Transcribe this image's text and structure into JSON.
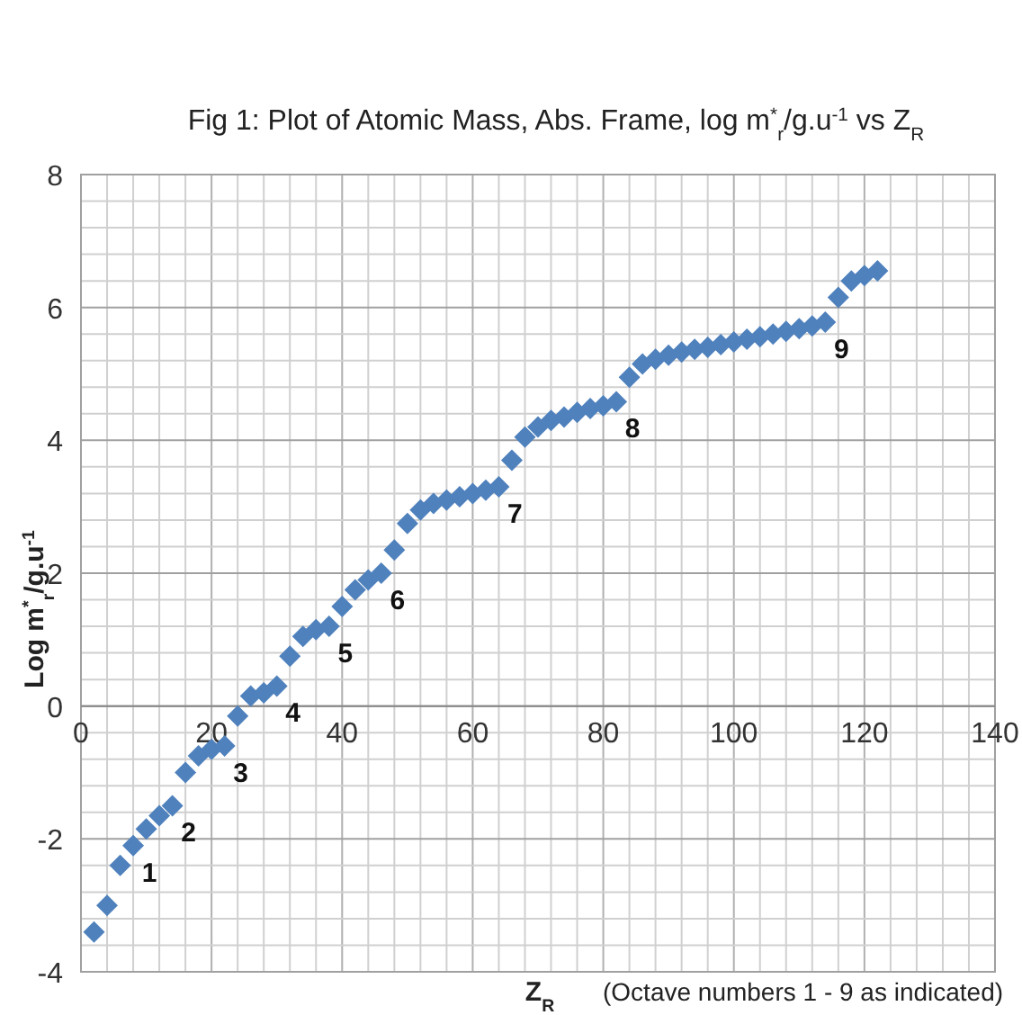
{
  "chart_data": {
    "type": "scatter",
    "title": "Fig 1: Plot of Atomic Mass, Abs. Frame, log m$^{*}$$_{r}$/g.u$^{-1}$  vs Z$_{R}$",
    "xlabel": "Z$_{R}$",
    "ylabel": "Log m$^{*}$$_{r}$/g.u$^{-1}$",
    "x": [
      2,
      4,
      6,
      8,
      10,
      12,
      14,
      16,
      18,
      20,
      22,
      24,
      26,
      28,
      30,
      32,
      34,
      36,
      38,
      40,
      42,
      44,
      46,
      48,
      50,
      52,
      54,
      56,
      58,
      60,
      62,
      64,
      66,
      68,
      70,
      72,
      74,
      76,
      78,
      80,
      82,
      84,
      86,
      88,
      90,
      92,
      94,
      96,
      98,
      100,
      102,
      104,
      106,
      108,
      110,
      112,
      114,
      116,
      118,
      120,
      122
    ],
    "series": [
      {
        "color": "#4f81bd",
        "values": [
          -3.4,
          -3.0,
          -2.4,
          -2.1,
          -1.85,
          -1.65,
          -1.5,
          -1.0,
          -0.75,
          -0.65,
          -0.6,
          -0.15,
          0.15,
          0.2,
          0.3,
          0.75,
          1.05,
          1.15,
          1.2,
          1.5,
          1.75,
          1.9,
          2.0,
          2.35,
          2.75,
          2.95,
          3.05,
          3.1,
          3.15,
          3.2,
          3.25,
          3.3,
          3.7,
          4.05,
          4.2,
          4.3,
          4.35,
          4.42,
          4.48,
          4.52,
          4.58,
          4.95,
          5.15,
          5.22,
          5.28,
          5.33,
          5.37,
          5.4,
          5.44,
          5.48,
          5.52,
          5.56,
          5.6,
          5.64,
          5.68,
          5.72,
          5.78,
          6.15,
          6.4,
          6.48,
          6.55
        ]
      }
    ],
    "marker": "diamond",
    "xlim": [
      0,
      140
    ],
    "ylim": [
      -4,
      8
    ],
    "xticks": [
      0,
      {
        "value": 4,
        "label": null
      },
      {
        "value": 8,
        "label": null
      },
      {
        "value": 12,
        "label": null
      },
      {
        "value": 16,
        "label": null
      },
      20,
      {
        "value": 24,
        "label": null
      },
      {
        "value": 28,
        "label": null
      },
      {
        "value": 32,
        "label": null
      },
      {
        "value": 36,
        "label": null
      },
      40,
      {
        "value": 44,
        "label": null
      },
      {
        "value": 48,
        "label": null
      },
      {
        "value": 52,
        "label": null
      },
      {
        "value": 56,
        "label": null
      },
      60,
      {
        "value": 64,
        "label": null
      },
      {
        "value": 68,
        "label": null
      },
      {
        "value": 72,
        "label": null
      },
      {
        "value": 76,
        "label": null
      },
      80,
      {
        "value": 84,
        "label": null
      },
      {
        "value": 88,
        "label": null
      },
      {
        "value": 92,
        "label": null
      },
      {
        "value": 96,
        "label": null
      },
      100,
      {
        "value": 104,
        "label": null
      },
      {
        "value": 108,
        "label": null
      },
      {
        "value": 112,
        "label": null
      },
      {
        "value": 116,
        "label": null
      },
      120,
      {
        "value": 124,
        "label": null
      },
      {
        "value": 128,
        "label": null
      },
      {
        "value": 132,
        "label": null
      },
      {
        "value": 136,
        "label": null
      },
      140
    ],
    "yticks": [
      -4,
      {
        "value": -3.6,
        "label": null
      },
      {
        "value": -3.2,
        "label": null
      },
      {
        "value": -2.8,
        "label": null
      },
      {
        "value": -2.4,
        "label": null
      },
      -2,
      {
        "value": -1.6,
        "label": null
      },
      {
        "value": -1.2,
        "label": null
      },
      {
        "value": -0.8,
        "label": null
      },
      {
        "value": -0.4,
        "label": null
      },
      0,
      {
        "value": 0.4,
        "label": null
      },
      {
        "value": 0.8,
        "label": null
      },
      {
        "value": 1.2,
        "label": null
      },
      {
        "value": 1.6,
        "label": null
      },
      2,
      {
        "value": 2.4,
        "label": null
      },
      {
        "value": 2.8,
        "label": null
      },
      {
        "value": 3.2,
        "label": null
      },
      {
        "value": 3.6,
        "label": null
      },
      4,
      {
        "value": 4.4,
        "label": null
      },
      {
        "value": 4.8,
        "label": null
      },
      {
        "value": 5.2,
        "label": null
      },
      {
        "value": 5.6,
        "label": null
      },
      6,
      {
        "value": 6.4,
        "label": null
      },
      {
        "value": 6.8,
        "label": null
      },
      {
        "value": 7.2,
        "label": null
      },
      {
        "value": 7.6,
        "label": null
      },
      8
    ],
    "grid": true,
    "annotations": [
      {
        "text": "1",
        "x": 8,
        "y": -2.1
      },
      {
        "text": "2",
        "x": 14,
        "y": -1.5
      },
      {
        "text": "3",
        "x": 22,
        "y": -0.6
      },
      {
        "text": "4",
        "x": 30,
        "y": 0.3
      },
      {
        "text": "5",
        "x": 38,
        "y": 1.2
      },
      {
        "text": "6",
        "x": 46,
        "y": 2.0
      },
      {
        "text": "7",
        "x": 64,
        "y": 3.3
      },
      {
        "text": "8",
        "x": 82,
        "y": 4.58
      },
      {
        "text": "9",
        "x": 114,
        "y": 5.78
      },
      "(Octave numbers  1 - 9 as indicated)"
    ]
  }
}
